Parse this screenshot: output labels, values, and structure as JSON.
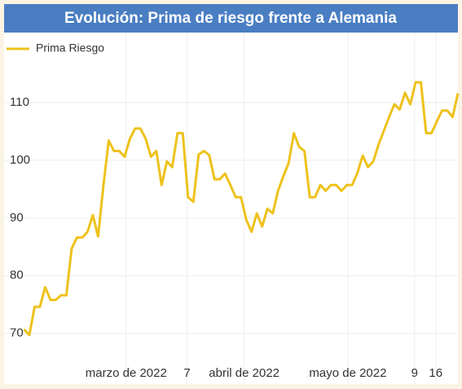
{
  "chart_data": {
    "type": "line",
    "title": "Evolución: Prima de riesgo frente a Alemania",
    "legend": "top-left",
    "grid": true,
    "series": [
      {
        "name": "Prima Riesgo",
        "color": "#eec21c",
        "values": [
          70.7,
          69.7,
          74.6,
          74.6,
          78,
          75.8,
          75.8,
          76.6,
          76.6,
          84.7,
          86.6,
          86.6,
          87.6,
          90.5,
          86.8,
          95.6,
          103.4,
          101.6,
          101.6,
          100.6,
          103.7,
          105.5,
          105.5,
          103.7,
          100.6,
          101.6,
          95.7,
          99.8,
          98.8,
          104.7,
          104.7,
          93.6,
          92.8,
          101,
          101.6,
          100.9,
          96.7,
          96.7,
          97.7,
          95.7,
          93.6,
          93.6,
          89.7,
          87.6,
          90.8,
          88.5,
          91.6,
          90.8,
          94.7,
          97.2,
          99.5,
          104.7,
          102.3,
          101.6,
          93.6,
          93.6,
          95.7,
          94.7,
          95.7,
          95.7,
          94.7,
          95.7,
          95.7,
          97.8,
          100.8,
          98.8,
          99.8,
          102.7,
          105.1,
          107.5,
          109.7,
          108.8,
          111.7,
          109.7,
          113.5,
          113.5,
          104.7,
          104.7,
          106.7,
          108.6,
          108.6,
          107.5,
          111.6
        ]
      }
    ],
    "xlim": [
      -3,
      82
    ],
    "xticks": [
      {
        "value": 19.3,
        "label": "marzo de 2022"
      },
      {
        "value": 30.8,
        "label": "7"
      },
      {
        "value": 41.6,
        "label": "abril de 2022"
      },
      {
        "value": 61.2,
        "label": "mayo de 2022"
      },
      {
        "value": 73.8,
        "label": "9"
      },
      {
        "value": 77.8,
        "label": "16"
      }
    ],
    "ylim": [
      66,
      121
    ],
    "yticks": [
      70,
      80,
      90,
      100,
      110
    ]
  }
}
